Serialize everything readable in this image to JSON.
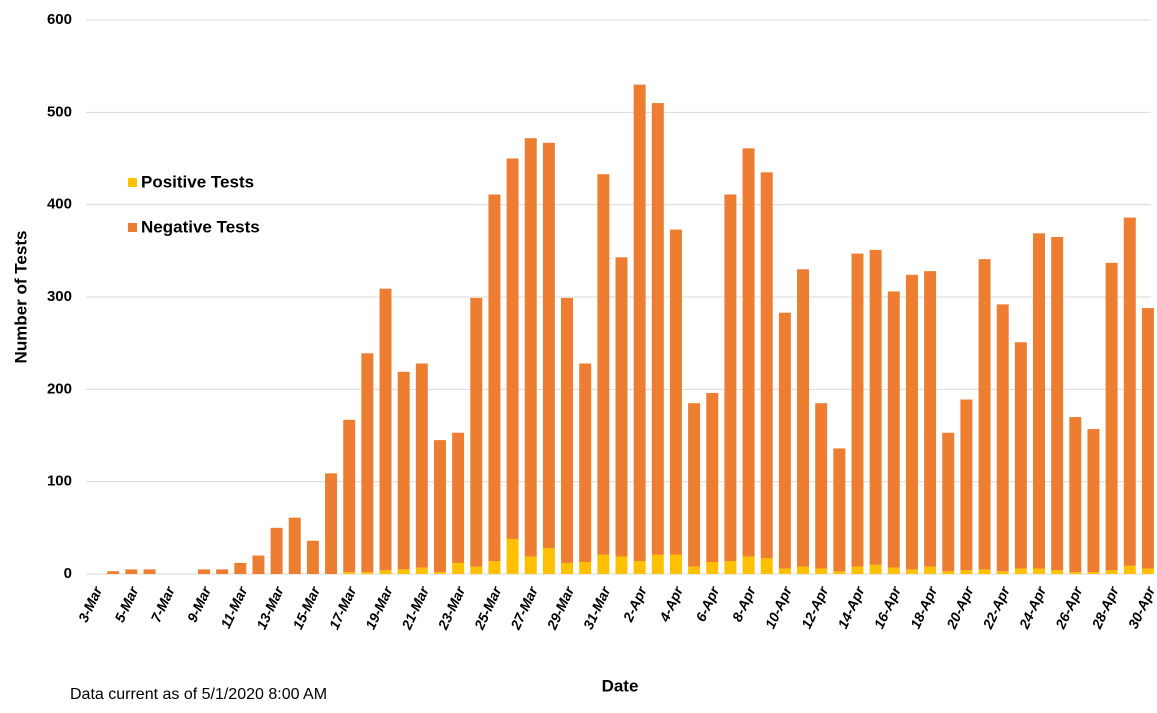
{
  "chart_data": {
    "type": "stacked_bar",
    "x_label": "Date",
    "y_label": "Number of Tests",
    "footnote": "Data current as of 5/1/2020 8:00 AM",
    "categories": [
      "3-Mar",
      null,
      "5-Mar",
      null,
      "7-Mar",
      null,
      "9-Mar",
      null,
      "11-Mar",
      null,
      "13-Mar",
      null,
      "15-Mar",
      null,
      "17-Mar",
      null,
      "19-Mar",
      null,
      "21-Mar",
      null,
      "23-Mar",
      null,
      "25-Mar",
      null,
      "27-Mar",
      null,
      "29-Mar",
      null,
      "31-Mar",
      null,
      "2-Apr",
      null,
      "4-Apr",
      null,
      "6-Apr",
      null,
      "8-Apr",
      null,
      "10-Apr",
      null,
      "12-Apr",
      null,
      "14-Apr",
      null,
      "16-Apr",
      null,
      "18-Apr",
      null,
      "20-Apr",
      null,
      "22-Apr",
      null,
      "24-Apr",
      null,
      "26-Apr",
      null,
      "28-Apr",
      null,
      "30-Apr"
    ],
    "series": [
      {
        "name": "Positive Tests",
        "color": "#ffc000",
        "values": [
          0,
          0,
          0,
          0,
          0,
          0,
          0,
          0,
          0,
          0,
          0,
          0,
          0,
          0,
          2,
          2,
          4,
          5,
          7,
          2,
          12,
          8,
          14,
          38,
          19,
          28,
          12,
          13,
          21,
          19,
          14,
          21,
          21,
          8,
          13,
          14,
          19,
          17,
          6,
          8,
          6,
          3,
          8,
          10,
          7,
          5,
          8,
          3,
          4,
          5,
          3,
          6,
          6,
          4,
          2,
          2,
          4,
          9,
          6
        ]
      },
      {
        "name": "Negative Tests",
        "color": "#ed7d31",
        "values": [
          0,
          3,
          5,
          5,
          0,
          0,
          5,
          5,
          12,
          20,
          50,
          61,
          36,
          109,
          165,
          237,
          305,
          214,
          221,
          143,
          141,
          291,
          397,
          412,
          453,
          439,
          287,
          215,
          412,
          324,
          516,
          489,
          352,
          177,
          183,
          397,
          442,
          418,
          277,
          322,
          179,
          133,
          339,
          341,
          299,
          319,
          320,
          150,
          185,
          336,
          289,
          245,
          363,
          361,
          168,
          155,
          333,
          377,
          282
        ]
      }
    ],
    "ylim": [
      0,
      600
    ],
    "yticks": [
      0,
      100,
      200,
      300,
      400,
      500,
      600
    ],
    "grid": true,
    "legend": "upper left"
  }
}
